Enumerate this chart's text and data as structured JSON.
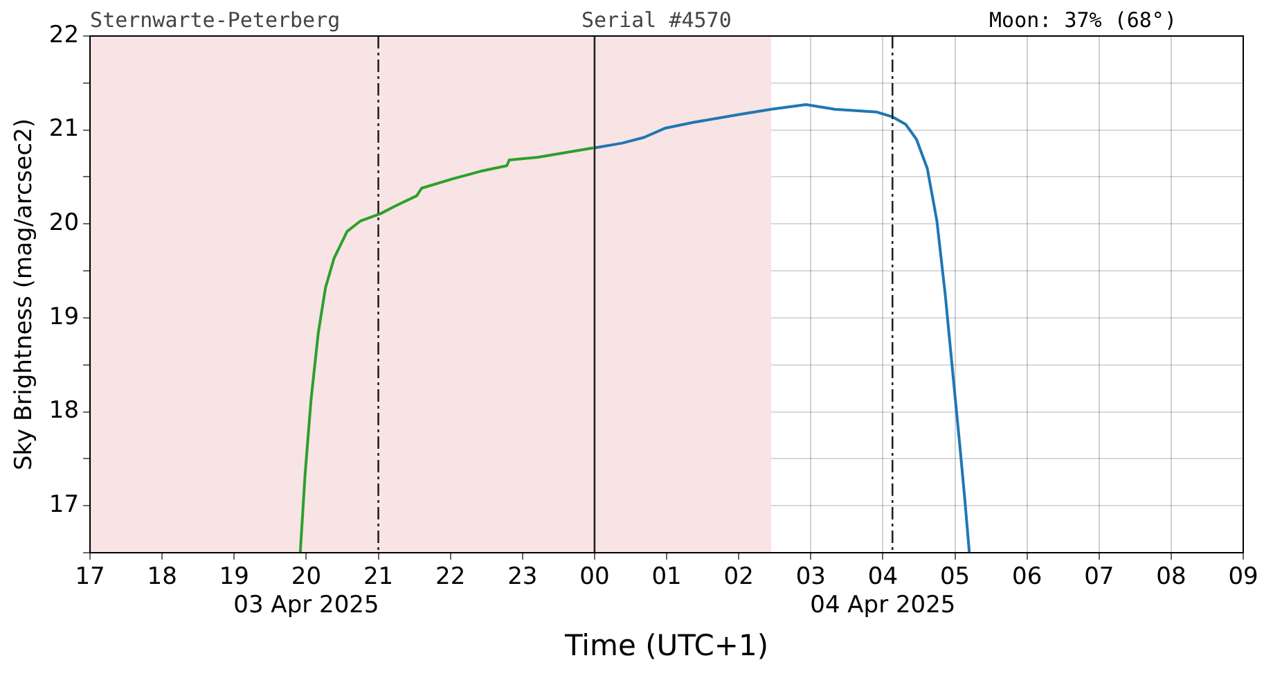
{
  "chart_data": {
    "type": "line",
    "xlabel": "Time (UTC+1)",
    "ylabel": "Sky Brightness (mag/arcsec2)",
    "annotations": [
      "Sternwarte-Peterberg",
      "Serial #4570",
      "Moon: 37% (68°)"
    ],
    "xlim": [
      "2025-04-03T17:00",
      "2025-04-04T09:00"
    ],
    "xticks": [
      {
        "value": "2025-04-03T17:00",
        "label": "17"
      },
      {
        "value": "2025-04-03T18:00",
        "label": "18"
      },
      {
        "value": "2025-04-03T19:00",
        "label": "19"
      },
      {
        "value": "2025-04-03T20:00",
        "label": "20\n03 Apr 2025"
      },
      {
        "value": "2025-04-03T21:00",
        "label": "21"
      },
      {
        "value": "2025-04-03T22:00",
        "label": "22"
      },
      {
        "value": "2025-04-03T23:00",
        "label": "23"
      },
      {
        "value": "2025-04-04T00:00",
        "label": "00"
      },
      {
        "value": "2025-04-04T01:00",
        "label": "01"
      },
      {
        "value": "2025-04-04T02:00",
        "label": "02"
      },
      {
        "value": "2025-04-04T03:00",
        "label": "03"
      },
      {
        "value": "2025-04-04T04:00",
        "label": "04\n04 Apr 2025"
      },
      {
        "value": "2025-04-04T05:00",
        "label": "05"
      },
      {
        "value": "2025-04-04T06:00",
        "label": "06"
      },
      {
        "value": "2025-04-04T07:00",
        "label": "07"
      },
      {
        "value": "2025-04-04T08:00",
        "label": "08"
      },
      {
        "value": "2025-04-04T09:00",
        "label": "09"
      }
    ],
    "ylim": [
      16.5,
      22
    ],
    "yticks": [
      {
        "value": 16.5,
        "label": null
      },
      17,
      {
        "value": 17.5,
        "label": null
      },
      18,
      {
        "value": 18.5,
        "label": null
      },
      19,
      {
        "value": 19.5,
        "label": null
      },
      20,
      {
        "value": 20.5,
        "label": null
      },
      21,
      {
        "value": 21.5,
        "label": null
      },
      22
    ],
    "grid": true,
    "marker": "none",
    "line_style": "solid",
    "bands": [
      {
        "axis": "x",
        "from": "2025-04-03T17:00",
        "to": "2025-04-04T02:27",
        "color": "#f8e4e4"
      }
    ],
    "ref_lines": [
      {
        "axis": "x",
        "value": "2025-04-03T21:00",
        "line_style": "dashed",
        "color": "#222222"
      },
      {
        "axis": "x",
        "value": "2025-04-04T00:00",
        "line_style": "solid",
        "color": "#222222"
      },
      {
        "axis": "x",
        "value": "2025-04-04T04:08",
        "line_style": "dashed",
        "color": "#222222"
      }
    ],
    "series": [
      {
        "color": "#2ca02c",
        "x": [
          "2025-04-03T19:55",
          "2025-04-03T19:59",
          "2025-04-03T20:04",
          "2025-04-03T20:10",
          "2025-04-03T20:16",
          "2025-04-03T20:23",
          "2025-04-03T20:34",
          "2025-04-03T20:45",
          "2025-04-03T21:02",
          "2025-04-03T21:14",
          "2025-04-03T21:32",
          "2025-04-03T21:36",
          "2025-04-03T22:02",
          "2025-04-03T22:25",
          "2025-04-03T22:47",
          "2025-04-03T22:49",
          "2025-04-03T23:13",
          "2025-04-03T23:36",
          "2025-04-03T23:59"
        ],
        "values": [
          16.5,
          17.33,
          18.13,
          18.84,
          19.32,
          19.63,
          19.92,
          20.03,
          20.11,
          20.19,
          20.3,
          20.38,
          20.48,
          20.56,
          20.62,
          20.68,
          20.71,
          20.76,
          20.81
        ]
      },
      {
        "color": "#1f77b4",
        "x": [
          "2025-04-04T00:00",
          "2025-04-04T00:23",
          "2025-04-04T00:41",
          "2025-04-04T00:59",
          "2025-04-04T01:22",
          "2025-04-04T01:58",
          "2025-04-04T02:27",
          "2025-04-04T02:56",
          "2025-04-04T03:20",
          "2025-04-04T03:55",
          "2025-04-04T04:08",
          "2025-04-04T04:19",
          "2025-04-04T04:28",
          "2025-04-04T04:37",
          "2025-04-04T04:45",
          "2025-04-04T04:52",
          "2025-04-04T04:58",
          "2025-04-04T05:04",
          "2025-04-04T05:08",
          "2025-04-04T05:12"
        ],
        "values": [
          20.81,
          20.86,
          20.92,
          21.02,
          21.08,
          21.16,
          21.22,
          21.27,
          21.22,
          21.19,
          21.14,
          21.06,
          20.9,
          20.59,
          20.03,
          19.24,
          18.44,
          17.65,
          17.1,
          16.5
        ]
      }
    ]
  }
}
